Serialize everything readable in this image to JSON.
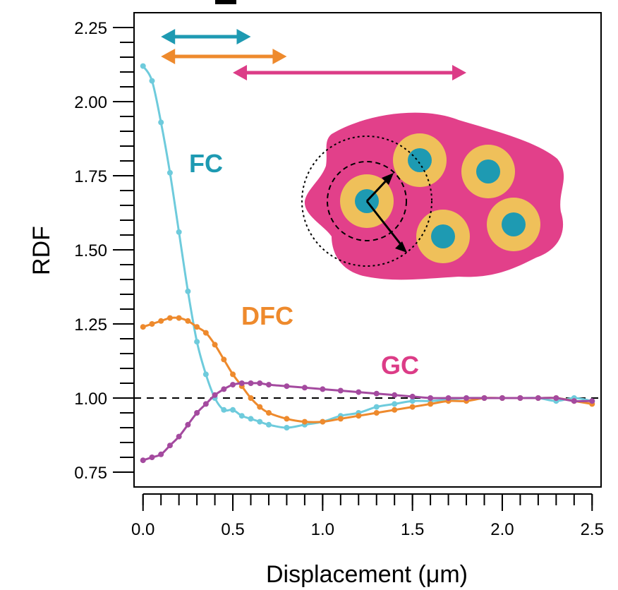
{
  "chart_data": {
    "type": "line",
    "title": "",
    "xlabel": "Displacement (μm)",
    "ylabel": "RDF",
    "xlim": [
      -0.05,
      2.55
    ],
    "ylim": [
      0.7,
      2.3
    ],
    "x_ticks": [
      "0.0",
      "0.5",
      "1.0",
      "1.5",
      "2.0",
      "2.5"
    ],
    "x_tick_values": [
      0.0,
      0.5,
      1.0,
      1.5,
      2.0,
      2.5
    ],
    "y_ticks": [
      "0.75",
      "1.00",
      "1.25",
      "1.50",
      "1.75",
      "2.00",
      "2.25"
    ],
    "y_tick_values": [
      0.75,
      1.0,
      1.25,
      1.5,
      1.75,
      2.0,
      2.25
    ],
    "reference_line": {
      "y": 1.0,
      "style": "dashed"
    },
    "series": [
      {
        "name": "FC",
        "label": "FC",
        "color": "#6ECBDC",
        "label_color": "#1E9AB2",
        "x": [
          0.0,
          0.05,
          0.1,
          0.15,
          0.2,
          0.25,
          0.3,
          0.35,
          0.4,
          0.45,
          0.5,
          0.55,
          0.6,
          0.65,
          0.7,
          0.8,
          0.9,
          1.0,
          1.1,
          1.2,
          1.3,
          1.4,
          1.5,
          1.6,
          1.7,
          1.8,
          1.9,
          2.0,
          2.1,
          2.2,
          2.3,
          2.4,
          2.5
        ],
        "y": [
          2.12,
          2.07,
          1.93,
          1.76,
          1.56,
          1.36,
          1.19,
          1.08,
          1.0,
          0.96,
          0.96,
          0.94,
          0.93,
          0.92,
          0.91,
          0.9,
          0.91,
          0.92,
          0.94,
          0.95,
          0.97,
          0.98,
          0.99,
          0.99,
          0.995,
          1.0,
          1.0,
          1.0,
          1.0,
          1.0,
          0.99,
          1.0,
          0.99
        ]
      },
      {
        "name": "DFC",
        "label": "DFC",
        "color": "#EE8A2D",
        "label_color": "#EE8A2D",
        "x": [
          0.0,
          0.05,
          0.1,
          0.15,
          0.2,
          0.25,
          0.3,
          0.35,
          0.4,
          0.45,
          0.5,
          0.55,
          0.6,
          0.65,
          0.7,
          0.8,
          0.9,
          1.0,
          1.1,
          1.2,
          1.3,
          1.4,
          1.5,
          1.6,
          1.7,
          1.8,
          1.9,
          2.0,
          2.1,
          2.2,
          2.3,
          2.4,
          2.5
        ],
        "y": [
          1.24,
          1.25,
          1.26,
          1.27,
          1.27,
          1.26,
          1.24,
          1.22,
          1.18,
          1.13,
          1.08,
          1.04,
          1.0,
          0.97,
          0.95,
          0.93,
          0.92,
          0.92,
          0.93,
          0.94,
          0.95,
          0.96,
          0.97,
          0.98,
          0.99,
          0.99,
          1.0,
          1.0,
          1.0,
          1.0,
          1.0,
          0.99,
          0.98
        ]
      },
      {
        "name": "GC",
        "label": "GC",
        "color": "#A44A9F",
        "label_color": "#DC3C87",
        "x": [
          0.0,
          0.05,
          0.1,
          0.15,
          0.2,
          0.25,
          0.3,
          0.35,
          0.4,
          0.45,
          0.5,
          0.55,
          0.6,
          0.65,
          0.7,
          0.8,
          0.9,
          1.0,
          1.1,
          1.2,
          1.3,
          1.4,
          1.5,
          1.6,
          1.7,
          1.8,
          1.9,
          2.0,
          2.1,
          2.2,
          2.3,
          2.4,
          2.5
        ],
        "y": [
          0.79,
          0.8,
          0.81,
          0.84,
          0.87,
          0.91,
          0.95,
          0.98,
          1.01,
          1.03,
          1.045,
          1.05,
          1.05,
          1.05,
          1.045,
          1.04,
          1.035,
          1.03,
          1.025,
          1.02,
          1.015,
          1.01,
          1.005,
          1.0,
          1.0,
          1.0,
          1.0,
          1.0,
          1.0,
          1.0,
          1.0,
          0.99,
          0.99
        ]
      }
    ],
    "range_arrows": [
      {
        "name": "FC",
        "from": 0.1,
        "to": 0.6,
        "color": "#1E9AB2"
      },
      {
        "name": "DFC",
        "from": 0.1,
        "to": 0.8,
        "color": "#EE8A2D"
      },
      {
        "name": "GC",
        "from": 0.5,
        "to": 1.8,
        "color": "#DC3C87"
      }
    ]
  }
}
